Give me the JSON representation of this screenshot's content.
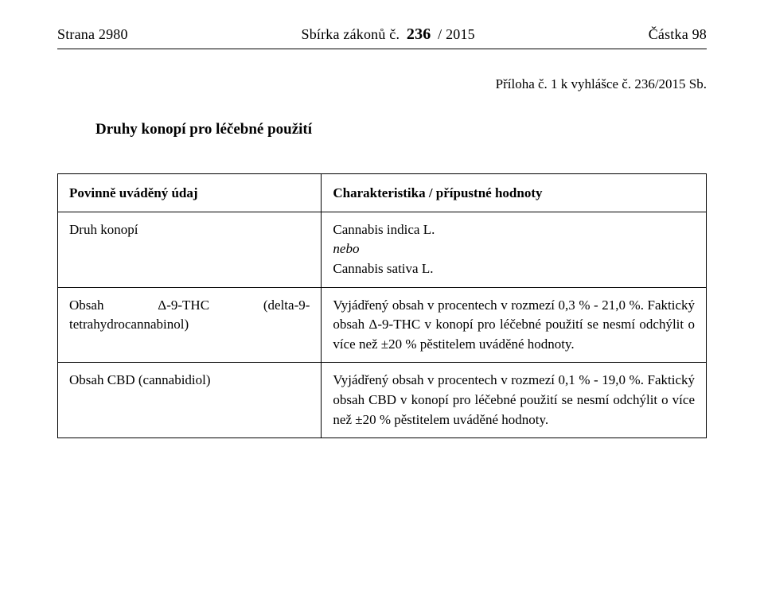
{
  "header": {
    "left": "Strana 2980",
    "center_prefix": "Sbírka zákonů č. ",
    "center_bold": "236",
    "center_suffix": " / 2015",
    "right": "Částka 98"
  },
  "attachment": "Příloha č. 1 k vyhlášce č. 236/2015 Sb.",
  "section_title": "Druhy konopí pro léčebné použití",
  "table": {
    "row1": {
      "left": "Povinně uváděný údaj",
      "right": "Charakteristika / přípustné hodnoty"
    },
    "row2": {
      "left": "Druh konopí",
      "right_line1": "Cannabis indica L.",
      "right_line2_italic": "nebo",
      "right_line3": "Cannabis sativa L."
    },
    "row3": {
      "left": "Obsah Δ-9-THC (delta-9-tetrahydrocannabinol)",
      "right": "Vyjádřený obsah v procentech v rozmezí 0,3 % - 21,0 %. Faktický obsah Δ-9-THC v konopí pro léčebné použití se nesmí odchýlit o více než ±20 % pěstitelem uváděné hodnoty."
    },
    "row4": {
      "left": "Obsah CBD (cannabidiol)",
      "right": "Vyjádřený obsah v procentech v rozmezí 0,1 % - 19,0 %. Faktický obsah CBD v konopí pro léčebné použití se nesmí odchýlit o více než ±20 % pěstitelem uváděné hodnoty."
    }
  }
}
